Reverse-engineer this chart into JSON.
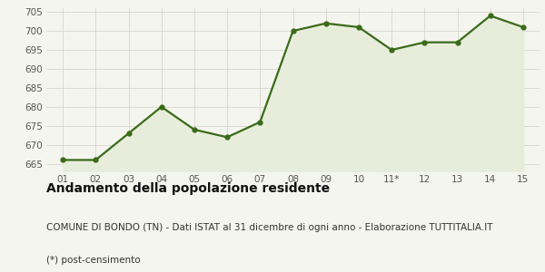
{
  "x_labels": [
    "01",
    "02",
    "03",
    "04",
    "05",
    "06",
    "07",
    "08",
    "09",
    "10",
    "11*",
    "12",
    "13",
    "14",
    "15"
  ],
  "y_values": [
    666,
    666,
    673,
    680,
    674,
    672,
    676,
    700,
    702,
    701,
    695,
    697,
    697,
    704,
    701
  ],
  "line_color": "#3a6b1a",
  "fill_color": "#e8eddb",
  "marker": "o",
  "marker_size": 3.5,
  "line_width": 1.6,
  "ylim": [
    663,
    706
  ],
  "yticks": [
    665,
    670,
    675,
    680,
    685,
    690,
    695,
    700,
    705
  ],
  "title": "Andamento della popolazione residente",
  "subtitle": "COMUNE DI BONDO (TN) - Dati ISTAT al 31 dicembre di ogni anno - Elaborazione TUTTITALIA.IT",
  "footnote": "(*) post-censimento",
  "bg_color": "#f5f5ef",
  "grid_color": "#d0d0c8",
  "title_fontsize": 10,
  "subtitle_fontsize": 7.5,
  "footnote_fontsize": 7.5,
  "tick_fontsize": 7.5
}
